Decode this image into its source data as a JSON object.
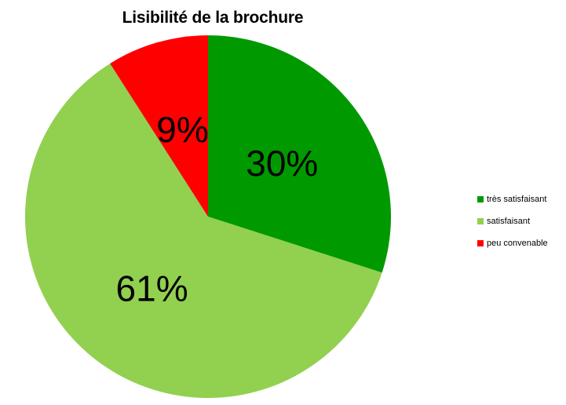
{
  "title": "Lisibilité de la brochure",
  "chart_data": {
    "type": "pie",
    "title": "Lisibilité de la brochure",
    "segments": [
      {
        "label": "très satisfaisant",
        "value": 30,
        "display": "30%",
        "color": "#009A00"
      },
      {
        "label": "satisfaisant",
        "value": 61,
        "display": "61%",
        "color": "#92D050"
      },
      {
        "label": "peu convenable",
        "value": 9,
        "display": "9%",
        "color": "#FF0000"
      }
    ],
    "start_angle_deg": 0,
    "direction": "clockwise",
    "legend_position": "right",
    "data_label_radius_fraction": 0.5,
    "background": "#FFFFFF",
    "label_color": "#000000"
  }
}
